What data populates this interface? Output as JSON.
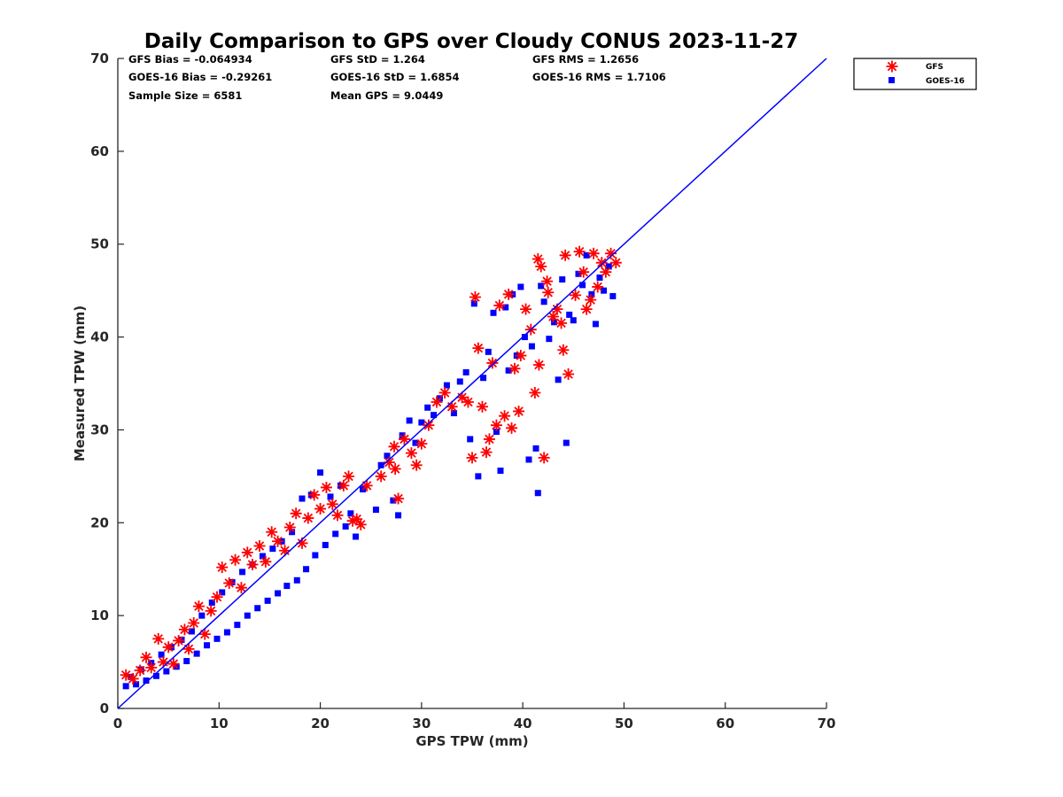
{
  "chart_data": {
    "type": "scatter",
    "title": "Daily Comparison to GPS over Cloudy CONUS 2023-11-27",
    "xlabel": "GPS TPW (mm)",
    "ylabel": "Measured TPW (mm)",
    "xlim": [
      0,
      70
    ],
    "ylim": [
      0,
      70
    ],
    "xticks": [
      "0",
      "10",
      "20",
      "30",
      "40",
      "50",
      "60",
      "70"
    ],
    "yticks": [
      "0",
      "10",
      "20",
      "30",
      "40",
      "50",
      "60",
      "70"
    ],
    "grid": false,
    "legend_position": "outside-top-right",
    "reference_line": {
      "x": [
        0,
        70
      ],
      "y": [
        0,
        70
      ],
      "color": "#0000ff"
    },
    "stats": [
      [
        "GFS Bias = -0.064934",
        "GFS StD = 1.264",
        "GFS RMS = 1.2656"
      ],
      [
        "GOES-16 Bias = -0.29261",
        "GOES-16 StD = 1.6854",
        "GOES-16 RMS = 1.7106"
      ],
      [
        "Sample Size = 6581",
        "Mean GPS = 9.0449",
        ""
      ]
    ],
    "series": [
      {
        "name": "GFS",
        "marker": "asterisk",
        "color": "#ff0000",
        "points": [
          [
            0.8,
            3.6
          ],
          [
            1.5,
            3.2
          ],
          [
            2.2,
            4.1
          ],
          [
            2.8,
            5.5
          ],
          [
            3.3,
            4.4
          ],
          [
            4,
            7.5
          ],
          [
            4.5,
            5
          ],
          [
            5,
            6.6
          ],
          [
            5.5,
            4.8
          ],
          [
            6,
            7.3
          ],
          [
            6.6,
            8.5
          ],
          [
            7,
            6.4
          ],
          [
            7.5,
            9.2
          ],
          [
            8,
            11
          ],
          [
            8.6,
            8
          ],
          [
            9.2,
            10.5
          ],
          [
            9.8,
            12
          ],
          [
            10.3,
            15.2
          ],
          [
            11,
            13.5
          ],
          [
            11.6,
            16
          ],
          [
            12.2,
            13
          ],
          [
            12.8,
            16.8
          ],
          [
            13.3,
            15.5
          ],
          [
            14,
            17.5
          ],
          [
            14.6,
            15.8
          ],
          [
            15.2,
            19
          ],
          [
            15.8,
            18
          ],
          [
            16.5,
            17
          ],
          [
            17,
            19.5
          ],
          [
            17.6,
            21
          ],
          [
            18.2,
            17.8
          ],
          [
            18.8,
            20.5
          ],
          [
            19.4,
            23
          ],
          [
            20,
            21.5
          ],
          [
            20.6,
            23.8
          ],
          [
            21.2,
            22
          ],
          [
            21.7,
            20.8
          ],
          [
            22.3,
            24
          ],
          [
            22.8,
            25
          ],
          [
            23.2,
            20.2
          ],
          [
            23.6,
            20.4
          ],
          [
            24,
            19.8
          ],
          [
            24.6,
            24
          ],
          [
            26,
            25
          ],
          [
            26.8,
            26.5
          ],
          [
            27.4,
            25.8
          ],
          [
            27.7,
            22.6
          ],
          [
            27.3,
            28.2
          ],
          [
            28.3,
            29
          ],
          [
            29,
            27.5
          ],
          [
            29.5,
            26.2
          ],
          [
            30,
            28.5
          ],
          [
            30.7,
            30.5
          ],
          [
            31.5,
            33
          ],
          [
            32.3,
            34
          ],
          [
            33,
            32.5
          ],
          [
            34,
            33.5
          ],
          [
            34.6,
            33
          ],
          [
            35,
            27
          ],
          [
            35.3,
            44.3
          ],
          [
            35.6,
            38.8
          ],
          [
            36,
            32.5
          ],
          [
            36.4,
            27.6
          ],
          [
            36.7,
            29
          ],
          [
            37,
            37.2
          ],
          [
            37.4,
            30.5
          ],
          [
            37.7,
            43.4
          ],
          [
            38.2,
            31.5
          ],
          [
            38.6,
            44.6
          ],
          [
            38.9,
            30.2
          ],
          [
            39.2,
            36.6
          ],
          [
            39.6,
            32
          ],
          [
            39.8,
            38
          ],
          [
            40.3,
            43
          ],
          [
            40.8,
            40.8
          ],
          [
            41.2,
            34
          ],
          [
            41.6,
            37
          ],
          [
            42.1,
            27
          ],
          [
            41.8,
            47.6
          ],
          [
            41.5,
            48.4
          ],
          [
            42.4,
            46
          ],
          [
            42.5,
            44.8
          ],
          [
            43,
            42.2
          ],
          [
            43.4,
            43
          ],
          [
            43.8,
            41.5
          ],
          [
            44,
            38.6
          ],
          [
            44.2,
            48.8
          ],
          [
            44.5,
            36
          ],
          [
            45.2,
            44.5
          ],
          [
            45.6,
            49.2
          ],
          [
            46,
            47
          ],
          [
            46.3,
            43
          ],
          [
            46.7,
            44
          ],
          [
            47,
            49
          ],
          [
            47.4,
            45.4
          ],
          [
            47.8,
            48
          ],
          [
            48.2,
            47
          ],
          [
            48.7,
            49
          ],
          [
            49.2,
            48
          ]
        ]
      },
      {
        "name": "GOES-16",
        "marker": "square",
        "color": "#0000ff",
        "points": [
          [
            0.8,
            2.4
          ],
          [
            1.3,
            3.4
          ],
          [
            1.8,
            2.6
          ],
          [
            2.3,
            4.2
          ],
          [
            2.8,
            3
          ],
          [
            3.3,
            4.9
          ],
          [
            3.8,
            3.5
          ],
          [
            4.3,
            5.8
          ],
          [
            4.8,
            4
          ],
          [
            5.3,
            6.6
          ],
          [
            5.8,
            4.5
          ],
          [
            6.3,
            7.4
          ],
          [
            6.8,
            5.1
          ],
          [
            7.3,
            8.3
          ],
          [
            7.8,
            5.9
          ],
          [
            8.3,
            10
          ],
          [
            8.8,
            6.8
          ],
          [
            9.3,
            11.4
          ],
          [
            9.8,
            7.5
          ],
          [
            10.3,
            12.5
          ],
          [
            10.8,
            8.2
          ],
          [
            11.3,
            13.6
          ],
          [
            11.8,
            9
          ],
          [
            12.3,
            14.7
          ],
          [
            12.8,
            10
          ],
          [
            13.3,
            15.5
          ],
          [
            13.8,
            10.8
          ],
          [
            14.3,
            16.4
          ],
          [
            14.8,
            11.6
          ],
          [
            15.3,
            17.2
          ],
          [
            15.8,
            12.4
          ],
          [
            16.2,
            18
          ],
          [
            16.7,
            13.2
          ],
          [
            17.2,
            19
          ],
          [
            17.7,
            13.8
          ],
          [
            18.2,
            22.6
          ],
          [
            18.6,
            15
          ],
          [
            19.1,
            23
          ],
          [
            19.5,
            16.5
          ],
          [
            20,
            25.4
          ],
          [
            20.5,
            17.6
          ],
          [
            21,
            22.8
          ],
          [
            21.5,
            18.8
          ],
          [
            22,
            24
          ],
          [
            22.5,
            19.6
          ],
          [
            23,
            21
          ],
          [
            23.5,
            18.5
          ],
          [
            24.2,
            23.6
          ],
          [
            25.5,
            21.4
          ],
          [
            26,
            26.2
          ],
          [
            26.6,
            27.2
          ],
          [
            27.2,
            22.4
          ],
          [
            27.7,
            20.8
          ],
          [
            28.1,
            29.4
          ],
          [
            28.8,
            31
          ],
          [
            29.4,
            28.6
          ],
          [
            30,
            30.8
          ],
          [
            30.6,
            32.4
          ],
          [
            31.2,
            31.6
          ],
          [
            31.8,
            33.4
          ],
          [
            32.5,
            34.8
          ],
          [
            33.2,
            31.8
          ],
          [
            33.8,
            35.2
          ],
          [
            34.4,
            36.2
          ],
          [
            34.8,
            29
          ],
          [
            35.2,
            43.6
          ],
          [
            35.6,
            25
          ],
          [
            36.1,
            35.6
          ],
          [
            36.6,
            38.4
          ],
          [
            37.1,
            42.6
          ],
          [
            37.4,
            29.8
          ],
          [
            37.8,
            25.6
          ],
          [
            38.3,
            43.2
          ],
          [
            38.6,
            36.4
          ],
          [
            39,
            44.6
          ],
          [
            39.4,
            38
          ],
          [
            39.8,
            45.4
          ],
          [
            40.2,
            40
          ],
          [
            40.6,
            26.8
          ],
          [
            40.9,
            39
          ],
          [
            41.3,
            28
          ],
          [
            41.5,
            23.2
          ],
          [
            41.8,
            45.5
          ],
          [
            42.1,
            43.8
          ],
          [
            42.6,
            39.8
          ],
          [
            43.1,
            41.6
          ],
          [
            43.5,
            35.4
          ],
          [
            43.9,
            46.2
          ],
          [
            44.3,
            28.6
          ],
          [
            44.6,
            42.4
          ],
          [
            45,
            41.8
          ],
          [
            45.5,
            46.8
          ],
          [
            45.9,
            45.6
          ],
          [
            46.3,
            48.8
          ],
          [
            46.8,
            44.6
          ],
          [
            47.2,
            41.4
          ],
          [
            47.6,
            46.4
          ],
          [
            48,
            45
          ],
          [
            48.5,
            47.6
          ],
          [
            48.9,
            44.4
          ]
        ]
      }
    ]
  }
}
